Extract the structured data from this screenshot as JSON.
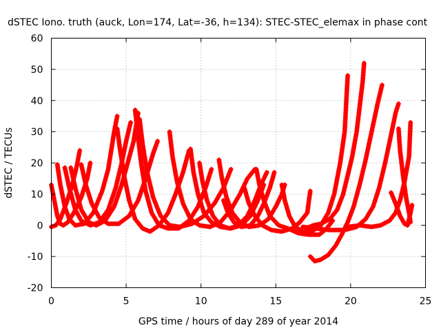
{
  "chart_data": {
    "type": "scatter",
    "title": "dSTEC Iono. truth (auck, Lon=174, Lat=-36, h=134): STEC-STEC_elemax in phase cont",
    "xlabel": "GPS time / hours of day 289 of year 2014",
    "ylabel": "dSTEC  / TECUs",
    "xlim": [
      0,
      25
    ],
    "ylim": [
      -20,
      60
    ],
    "xticks": [
      0,
      5,
      10,
      15,
      20,
      25
    ],
    "yticks": [
      -20,
      -10,
      0,
      10,
      20,
      30,
      40,
      50,
      60
    ],
    "xtick_labels": [
      "0",
      "5",
      "10",
      "15",
      "20",
      "25"
    ],
    "ytick_labels": [
      "-20",
      "-10",
      "0",
      "10",
      "20",
      "30",
      "40",
      "50",
      "60"
    ],
    "grid": true,
    "marker": "+",
    "color": "#ff0000",
    "series": [
      {
        "points": [
          [
            0.0,
            13
          ],
          [
            0.2,
            8
          ],
          [
            0.4,
            3
          ],
          [
            0.6,
            0.5
          ],
          [
            0.8,
            0
          ],
          [
            1.1,
            1
          ],
          [
            1.5,
            4
          ],
          [
            2.0,
            9
          ],
          [
            2.4,
            15
          ],
          [
            2.6,
            20
          ]
        ]
      },
      {
        "points": [
          [
            0.0,
            -0.5
          ],
          [
            0.3,
            0
          ],
          [
            0.6,
            2
          ],
          [
            1.0,
            7
          ],
          [
            1.4,
            13
          ],
          [
            1.7,
            19
          ],
          [
            1.9,
            24
          ]
        ]
      },
      {
        "points": [
          [
            0.4,
            19.5
          ],
          [
            0.6,
            13
          ],
          [
            0.9,
            6
          ],
          [
            1.2,
            2
          ],
          [
            1.6,
            0
          ],
          [
            2.2,
            0.5
          ],
          [
            2.8,
            4
          ],
          [
            3.4,
            11
          ],
          [
            3.8,
            18
          ],
          [
            4.0,
            24
          ],
          [
            4.2,
            30
          ],
          [
            4.4,
            35
          ]
        ]
      },
      {
        "points": [
          [
            0.9,
            18.5
          ],
          [
            1.2,
            12
          ],
          [
            1.6,
            5
          ],
          [
            2.0,
            1.5
          ],
          [
            2.6,
            0
          ],
          [
            3.2,
            1
          ],
          [
            3.8,
            5
          ],
          [
            4.3,
            12
          ],
          [
            4.7,
            20
          ],
          [
            5.0,
            27
          ],
          [
            5.3,
            33
          ]
        ]
      },
      {
        "points": [
          [
            1.3,
            18.5
          ],
          [
            1.6,
            12
          ],
          [
            2.0,
            5
          ],
          [
            2.5,
            1
          ],
          [
            3.0,
            0
          ],
          [
            3.6,
            1.5
          ],
          [
            4.2,
            6
          ],
          [
            4.7,
            13
          ],
          [
            5.1,
            20
          ],
          [
            5.5,
            27
          ],
          [
            5.8,
            36
          ]
        ]
      },
      {
        "points": [
          [
            2.0,
            19.5
          ],
          [
            2.3,
            13
          ],
          [
            2.7,
            7
          ],
          [
            3.2,
            2.5
          ],
          [
            3.8,
            0.5
          ],
          [
            4.5,
            0.5
          ],
          [
            5.2,
            3
          ],
          [
            5.8,
            8
          ],
          [
            6.3,
            15
          ],
          [
            6.8,
            23
          ],
          [
            7.1,
            27
          ]
        ]
      },
      {
        "points": [
          [
            4.4,
            31
          ],
          [
            4.6,
            24
          ],
          [
            4.9,
            15
          ],
          [
            5.2,
            8
          ],
          [
            5.6,
            2
          ],
          [
            6.1,
            -1
          ],
          [
            6.6,
            -2
          ],
          [
            7.2,
            0
          ],
          [
            7.8,
            4
          ],
          [
            8.3,
            10
          ],
          [
            8.8,
            17
          ],
          [
            9.2,
            24
          ]
        ]
      },
      {
        "points": [
          [
            5.6,
            37
          ],
          [
            5.8,
            28
          ],
          [
            6.0,
            20
          ],
          [
            6.3,
            11
          ],
          [
            6.7,
            4
          ],
          [
            7.2,
            0
          ],
          [
            7.8,
            -1
          ],
          [
            8.5,
            -1
          ],
          [
            9.2,
            1.5
          ],
          [
            9.8,
            6
          ],
          [
            10.3,
            12
          ],
          [
            10.7,
            18
          ]
        ]
      },
      {
        "points": [
          [
            5.9,
            34
          ],
          [
            6.1,
            26
          ],
          [
            6.4,
            17
          ],
          [
            6.8,
            9
          ],
          [
            7.3,
            3
          ],
          [
            7.9,
            0
          ],
          [
            8.6,
            -0.5
          ],
          [
            9.4,
            0.5
          ],
          [
            10.2,
            3
          ],
          [
            10.9,
            7
          ],
          [
            11.5,
            12
          ],
          [
            12.0,
            18
          ]
        ]
      },
      {
        "points": [
          [
            7.9,
            30
          ],
          [
            8.1,
            22
          ],
          [
            8.4,
            14
          ],
          [
            8.8,
            7
          ],
          [
            9.3,
            2
          ],
          [
            9.9,
            0
          ],
          [
            10.6,
            -0.5
          ],
          [
            11.3,
            1
          ],
          [
            12.0,
            5
          ],
          [
            12.6,
            10
          ],
          [
            13.1,
            15
          ],
          [
            13.6,
            18
          ]
        ]
      },
      {
        "points": [
          [
            9.3,
            24.5
          ],
          [
            9.5,
            17
          ],
          [
            9.8,
            10
          ],
          [
            10.2,
            4
          ],
          [
            10.7,
            1
          ],
          [
            11.3,
            -0.5
          ],
          [
            12.0,
            -1
          ],
          [
            12.7,
            0
          ],
          [
            13.3,
            3
          ],
          [
            13.8,
            8
          ],
          [
            14.2,
            13
          ]
        ]
      },
      {
        "points": [
          [
            9.9,
            20
          ],
          [
            10.1,
            14
          ],
          [
            10.4,
            8
          ],
          [
            10.8,
            3
          ],
          [
            11.3,
            0
          ],
          [
            11.9,
            -1
          ],
          [
            12.5,
            0
          ],
          [
            13.1,
            3
          ],
          [
            13.6,
            8
          ],
          [
            14.0,
            13
          ],
          [
            14.4,
            17
          ]
        ]
      },
      {
        "points": [
          [
            11.2,
            21
          ],
          [
            11.4,
            15
          ],
          [
            11.7,
            9
          ],
          [
            12.1,
            4
          ],
          [
            12.6,
            1
          ],
          [
            13.2,
            -0.5
          ],
          [
            13.9,
            0
          ],
          [
            14.5,
            2
          ],
          [
            15.0,
            6
          ],
          [
            15.4,
            10
          ],
          [
            15.6,
            13
          ]
        ]
      },
      {
        "points": [
          [
            11.5,
            8
          ],
          [
            11.8,
            4
          ],
          [
            12.2,
            1
          ],
          [
            12.7,
            -0.5
          ],
          [
            13.3,
            0
          ],
          [
            13.8,
            3
          ],
          [
            14.2,
            7
          ],
          [
            14.6,
            12
          ],
          [
            14.9,
            17
          ]
        ]
      },
      {
        "points": [
          [
            12.9,
            12
          ],
          [
            13.2,
            7
          ],
          [
            13.6,
            3
          ],
          [
            14.1,
            0
          ],
          [
            14.7,
            -1.5
          ],
          [
            15.4,
            -2
          ],
          [
            16.1,
            -1
          ],
          [
            16.6,
            1
          ],
          [
            17.1,
            4
          ],
          [
            17.3,
            11
          ]
        ]
      },
      {
        "points": [
          [
            13.7,
            18
          ],
          [
            13.9,
            13
          ],
          [
            14.2,
            8
          ],
          [
            14.6,
            3
          ],
          [
            15.2,
            0
          ],
          [
            15.8,
            -1
          ],
          [
            16.5,
            -2.5
          ],
          [
            17.2,
            -3
          ],
          [
            17.9,
            -3
          ],
          [
            18.4,
            -1
          ],
          [
            18.8,
            1.5
          ]
        ]
      },
      {
        "points": [
          [
            15.4,
            13
          ],
          [
            15.6,
            8
          ],
          [
            15.9,
            3
          ],
          [
            16.3,
            -0.5
          ],
          [
            16.8,
            -2
          ],
          [
            17.4,
            -2
          ],
          [
            18.0,
            0
          ],
          [
            18.5,
            4
          ],
          [
            18.9,
            10
          ],
          [
            19.3,
            20
          ],
          [
            19.6,
            30
          ],
          [
            19.8,
            48
          ]
        ]
      },
      {
        "points": [
          [
            17.0,
            -1
          ],
          [
            17.5,
            0
          ],
          [
            18.0,
            0.5
          ],
          [
            18.6,
            2
          ],
          [
            19.1,
            5
          ],
          [
            19.5,
            10
          ],
          [
            19.8,
            16
          ],
          [
            20.1,
            22
          ],
          [
            20.4,
            30
          ],
          [
            20.6,
            38
          ],
          [
            20.8,
            46
          ],
          [
            20.9,
            52
          ]
        ]
      },
      {
        "points": [
          [
            17.3,
            -10
          ],
          [
            17.6,
            -11.5
          ],
          [
            18.0,
            -11
          ],
          [
            18.5,
            -9.5
          ],
          [
            19.0,
            -6.5
          ],
          [
            19.4,
            -3
          ],
          [
            19.8,
            1
          ],
          [
            20.2,
            6
          ],
          [
            20.6,
            13
          ],
          [
            21.0,
            21
          ],
          [
            21.4,
            30
          ],
          [
            21.8,
            39
          ],
          [
            22.1,
            45
          ]
        ]
      },
      {
        "points": [
          [
            16.8,
            -0.5
          ],
          [
            17.6,
            -1
          ],
          [
            18.6,
            -1.5
          ],
          [
            19.6,
            -1.5
          ],
          [
            20.4,
            -0.5
          ],
          [
            21.0,
            2
          ],
          [
            21.5,
            6
          ],
          [
            21.9,
            12
          ],
          [
            22.3,
            20
          ],
          [
            22.7,
            29
          ],
          [
            23.0,
            36
          ],
          [
            23.2,
            39
          ]
        ]
      },
      {
        "points": [
          [
            19.8,
            -0.5
          ],
          [
            20.6,
            0
          ],
          [
            21.4,
            -0.5
          ],
          [
            22.0,
            0
          ],
          [
            22.6,
            1.5
          ],
          [
            23.0,
            4
          ],
          [
            23.3,
            8
          ],
          [
            23.6,
            14
          ],
          [
            23.9,
            22
          ],
          [
            24.0,
            33
          ]
        ]
      },
      {
        "points": [
          [
            23.2,
            31
          ],
          [
            23.3,
            24
          ],
          [
            23.5,
            16
          ],
          [
            23.7,
            9
          ],
          [
            23.9,
            4
          ],
          [
            24.0,
            1
          ]
        ]
      },
      {
        "points": [
          [
            22.7,
            10.5
          ],
          [
            23.0,
            7
          ],
          [
            23.3,
            3
          ],
          [
            23.6,
            0.5
          ],
          [
            23.8,
            0
          ],
          [
            24.0,
            4
          ],
          [
            24.1,
            6.5
          ]
        ]
      }
    ]
  }
}
